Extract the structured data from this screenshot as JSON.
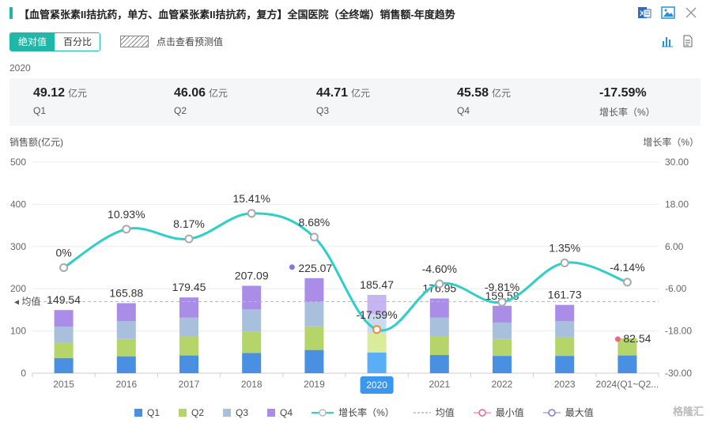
{
  "header": {
    "title": "【血管紧张素II拮抗药，单方、血管紧张素II拮抗药，复方】全国医院（全终端）销售额-年度趋势"
  },
  "toolbar": {
    "tab_absolute": "绝对值",
    "tab_percent": "百分比",
    "forecast_label": "点击查看预测值"
  },
  "summary": {
    "year": "2020",
    "items": [
      {
        "value": "49.12",
        "unit": "亿元",
        "label": "Q1"
      },
      {
        "value": "46.06",
        "unit": "亿元",
        "label": "Q2"
      },
      {
        "value": "44.71",
        "unit": "亿元",
        "label": "Q3"
      },
      {
        "value": "45.58",
        "unit": "亿元",
        "label": "Q4"
      },
      {
        "value": "-17.59%",
        "unit": "",
        "label": "增长率（%）"
      }
    ]
  },
  "axes": {
    "left_title": "销售额(亿元)",
    "right_title": "增长率（%）",
    "avg_label": "均值"
  },
  "legend": {
    "q1": "Q1",
    "q2": "Q2",
    "q3": "Q3",
    "q4": "Q4",
    "growth": "增长率（%）",
    "avg": "均值",
    "min": "最小值",
    "max": "最大值"
  },
  "watermark": "格隆汇",
  "colors": {
    "q1": "#4a90e2",
    "q2": "#b5d56a",
    "q3": "#a9c0dc",
    "q4": "#a98de6",
    "growth": "#2ecfc8",
    "accent": "#1fb8a8"
  },
  "chart_data": {
    "type": "bar",
    "stacked": true,
    "categories": [
      "2015",
      "2016",
      "2017",
      "2018",
      "2019",
      "2020",
      "2021",
      "2022",
      "2023",
      "2024(Q1~Q2..."
    ],
    "selected_category": "2020",
    "series": [
      {
        "name": "Q1",
        "values": [
          36,
          40,
          42,
          48,
          55,
          49.12,
          43,
          41,
          41,
          42
        ]
      },
      {
        "name": "Q2",
        "values": [
          36,
          41,
          45,
          50,
          56,
          46.06,
          44,
          40,
          44,
          40.54
        ]
      },
      {
        "name": "Q3",
        "values": [
          38,
          42,
          45,
          53,
          57,
          44.71,
          45,
          39,
          38,
          null
        ]
      },
      {
        "name": "Q4",
        "values": [
          39.54,
          42.88,
          47.45,
          56.09,
          57.07,
          45.58,
          44.95,
          39.58,
          38.73,
          null
        ]
      }
    ],
    "totals": [
      149.54,
      165.88,
      179.45,
      207.09,
      225.07,
      185.47,
      176.95,
      159.58,
      161.73,
      82.54
    ],
    "total_labels": [
      "149.54",
      "165.88",
      "179.45",
      "207.09",
      "225.07",
      "185.47",
      "176.95",
      "159.58",
      "161.73",
      "82.54"
    ],
    "growth_name": "增长率（%）",
    "growth": [
      0,
      10.93,
      8.17,
      15.41,
      8.68,
      -17.59,
      -4.6,
      -9.81,
      1.35,
      -4.14
    ],
    "growth_labels": [
      "0%",
      "10.93%",
      "8.17%",
      "15.41%",
      "8.68%",
      "-17.59%",
      "-4.60%",
      "-9.81%",
      "1.35%",
      "-4.14%"
    ],
    "average": 169.5,
    "max_index": 4,
    "min_index": 9,
    "ylim": [
      0,
      500
    ],
    "yticks": [
      0,
      100,
      200,
      300,
      400,
      500
    ],
    "y2lim": [
      -30,
      30
    ],
    "y2ticks": [
      "-30.00",
      "-18.00",
      "-6.00",
      "6.00",
      "18.00",
      "30.00"
    ],
    "y2tick_values": [
      -30,
      -18,
      -6,
      6,
      18,
      30
    ],
    "ylabel": "销售额(亿元)",
    "y2label": "增长率（%）",
    "grid": true,
    "legend_position": "bottom"
  }
}
